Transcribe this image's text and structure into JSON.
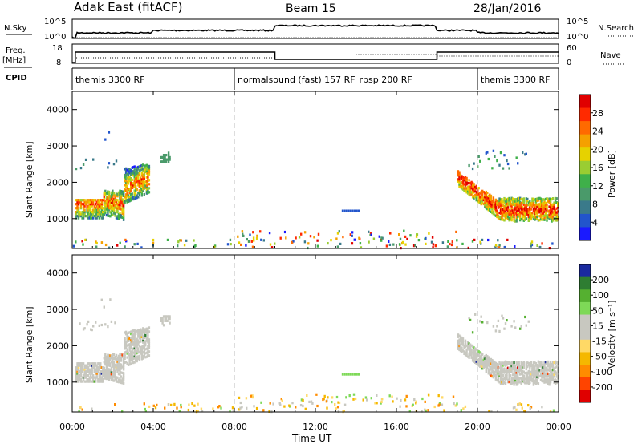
{
  "header": {
    "site": "Adak East (fitACF)",
    "beam": "Beam 15",
    "date": "28/Jan/2016"
  },
  "labels": {
    "nsky": "N.Sky",
    "nsearch": "N.Search",
    "freq": "Freq.",
    "freq_unit": "[MHz]",
    "nave": "Nave",
    "cpid": "CPID",
    "slant_range": "Slant Range [km]",
    "time_axis": "Time UT",
    "power_label": "Power [dB]",
    "velocity_label": "Velocity [m s⁻¹]"
  },
  "noise_panel": {
    "left_ticks": [
      "10^5",
      "10^0"
    ],
    "right_ticks": [
      "10^5",
      "10^0"
    ]
  },
  "freq_panel": {
    "left_ticks": [
      "18",
      "8"
    ],
    "right_ticks": [
      "60",
      "0"
    ]
  },
  "cpid_segments": [
    {
      "label": "themis 3300 RF",
      "start_h": 0,
      "end_h": 8
    },
    {
      "label": "normalsound (fast) 157 RF",
      "start_h": 8,
      "end_h": 14
    },
    {
      "label": "rbsp 200 RF",
      "start_h": 14,
      "end_h": 20
    },
    {
      "label": "themis 3300 RF",
      "start_h": 20,
      "end_h": 24
    }
  ],
  "time_ticks": [
    "00:00",
    "04:00",
    "08:00",
    "12:00",
    "16:00",
    "20:00",
    "00:00"
  ],
  "range_ticks": [
    "1000",
    "2000",
    "3000",
    "4000"
  ],
  "power_scale": {
    "ticks": [
      "4",
      "8",
      "12",
      "16",
      "20",
      "24",
      "28"
    ],
    "colors": [
      "#1a1aff",
      "#2255cc",
      "#3a7a8a",
      "#4a9a6a",
      "#3fb04a",
      "#9acd32",
      "#e6d200",
      "#f5a000",
      "#ff6a00",
      "#ff2a00",
      "#e00000"
    ]
  },
  "velocity_scale": {
    "ticks": [
      "200",
      "100",
      "50",
      "15",
      "-15",
      "-50",
      "-100",
      "-200"
    ],
    "colors": [
      "#1a2aa0",
      "#2e7d32",
      "#55b030",
      "#7ed957",
      "#c8c8c0",
      "#c8c8c0",
      "#ffd966",
      "#f5b800",
      "#ff8c00",
      "#ff4400",
      "#e00000"
    ]
  },
  "chart_data": {
    "type": "heatmap",
    "x_range_hours": [
      0,
      24
    ],
    "y_range_km": [
      180,
      4500
    ],
    "ion_scatter_hours": [
      [
        0.2,
        5.0
      ],
      [
        19.0,
        24.0
      ]
    ]
  }
}
